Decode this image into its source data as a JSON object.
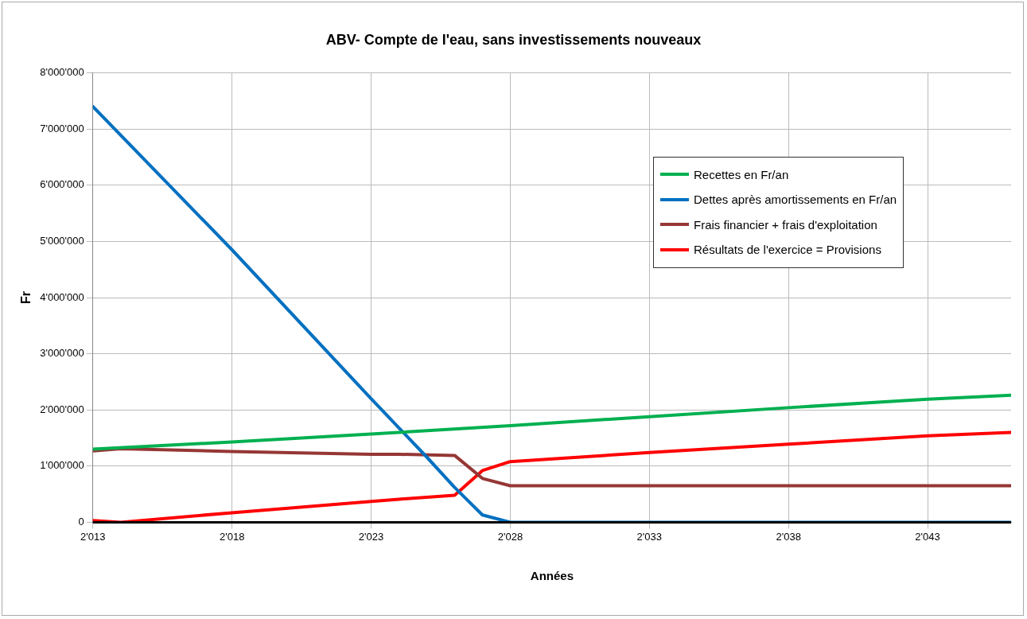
{
  "chart_data": {
    "type": "line",
    "title": "ABV- Compte de l'eau, sans investissements nouveaux",
    "xlabel": "Années",
    "ylabel": "Fr",
    "xlim": [
      2013,
      2046
    ],
    "xticks": [
      {
        "value": 2013,
        "label": "2'013"
      },
      {
        "value": 2018,
        "label": "2'018"
      },
      {
        "value": 2023,
        "label": "2'023"
      },
      {
        "value": 2028,
        "label": "2'028"
      },
      {
        "value": 2033,
        "label": "2'033"
      },
      {
        "value": 2038,
        "label": "2'038"
      },
      {
        "value": 2043,
        "label": "2'043"
      }
    ],
    "ylim": [
      0,
      8000000
    ],
    "yticks": [
      {
        "value": 0,
        "label": "0"
      },
      {
        "value": 1000000,
        "label": "1'000'000"
      },
      {
        "value": 2000000,
        "label": "2'000'000"
      },
      {
        "value": 3000000,
        "label": "3'000'000"
      },
      {
        "value": 4000000,
        "label": "4'000'000"
      },
      {
        "value": 5000000,
        "label": "5'000'000"
      },
      {
        "value": 6000000,
        "label": "6'000'000"
      },
      {
        "value": 7000000,
        "label": "7'000'000"
      },
      {
        "value": 8000000,
        "label": "8'000'000"
      }
    ],
    "grid": true,
    "legend": "top right",
    "marker": "none",
    "line_style": "solid",
    "series": [
      {
        "name": "Recettes en Fr/an",
        "color": "#00b050",
        "x": [
          2013,
          2018,
          2023,
          2028,
          2033,
          2038,
          2043,
          2046
        ],
        "values": [
          1300000,
          1430000,
          1570000,
          1720000,
          1880000,
          2040000,
          2190000,
          2260000
        ]
      },
      {
        "name": "Dettes après amortissements en Fr/an",
        "color": "#0070c0",
        "x": [
          2013,
          2018,
          2023,
          2024,
          2025,
          2026,
          2027,
          2028,
          2046
        ],
        "values": [
          7400000,
          4850000,
          2200000,
          1680000,
          1160000,
          620000,
          130000,
          0,
          0
        ]
      },
      {
        "name": "Frais financier + frais d'exploitation",
        "color": "#953735",
        "x": [
          2013,
          2014,
          2018,
          2023,
          2024,
          2026,
          2027,
          2028,
          2046
        ],
        "values": [
          1270000,
          1310000,
          1260000,
          1210000,
          1210000,
          1190000,
          780000,
          650000,
          650000
        ]
      },
      {
        "name": "Résultats de l'exercice = Provisions",
        "color": "#ff0000",
        "x": [
          2013,
          2014,
          2018,
          2023,
          2024,
          2026,
          2027,
          2028,
          2033,
          2038,
          2043,
          2046
        ],
        "values": [
          30000,
          0,
          170000,
          370000,
          410000,
          480000,
          920000,
          1080000,
          1240000,
          1390000,
          1540000,
          1600000
        ]
      }
    ]
  }
}
